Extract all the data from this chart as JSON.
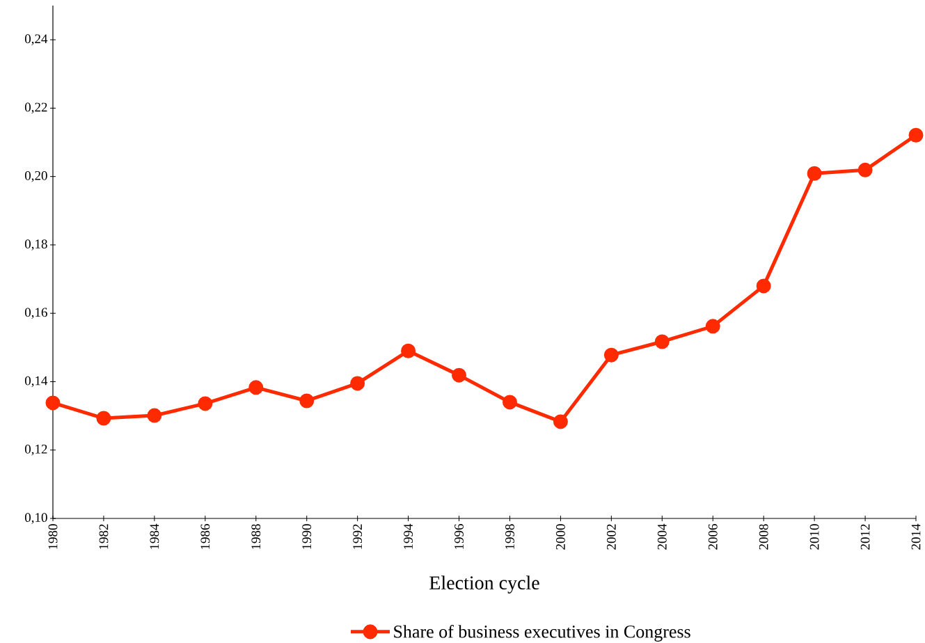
{
  "chart_data": {
    "type": "line",
    "xlabel": "Election cycle",
    "x": [
      1980,
      1982,
      1984,
      1986,
      1988,
      1990,
      1992,
      1994,
      1996,
      1998,
      2000,
      2002,
      2004,
      2006,
      2008,
      2010,
      2012,
      2014
    ],
    "series": [
      {
        "name": "Share of business executives in Congress",
        "color": "#ff2a00",
        "values": [
          0.1338,
          0.1293,
          0.1301,
          0.1336,
          0.1383,
          0.1344,
          0.1395,
          0.149,
          0.1419,
          0.134,
          0.1283,
          0.1478,
          0.1517,
          0.1562,
          0.168,
          0.2009,
          0.2019,
          0.2121
        ]
      }
    ],
    "xlim": [
      1980,
      2014
    ],
    "xticks": [
      1980,
      1982,
      1984,
      1986,
      1988,
      1990,
      1992,
      1994,
      1996,
      1998,
      2000,
      2002,
      2004,
      2006,
      2008,
      2010,
      2012,
      2014
    ],
    "ylim": [
      0.1,
      0.25
    ],
    "yticks": [
      {
        "value": 0.1,
        "label": "0,10"
      },
      {
        "value": 0.12,
        "label": "0,12"
      },
      {
        "value": 0.14,
        "label": "0,14"
      },
      {
        "value": 0.16,
        "label": "0,16"
      },
      {
        "value": 0.18,
        "label": "0,18"
      },
      {
        "value": 0.2,
        "label": "0,20"
      },
      {
        "value": 0.22,
        "label": "0,22"
      },
      {
        "value": 0.24,
        "label": "0,24"
      }
    ],
    "grid": false,
    "legend": "bottom",
    "marker": "circle",
    "line_style": "solid"
  }
}
